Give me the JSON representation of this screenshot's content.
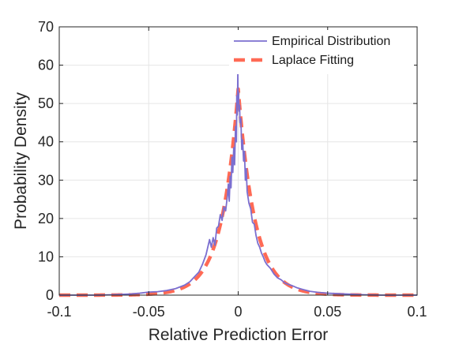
{
  "chart_data": {
    "type": "line",
    "title": "",
    "xlabel": "Relative Prediction Error",
    "ylabel": "Probability Density",
    "xlim": [
      -0.1,
      0.1
    ],
    "ylim": [
      0,
      70
    ],
    "x_ticks": [
      -0.1,
      -0.05,
      0,
      0.05,
      0.1
    ],
    "x_tick_labels": [
      "-0.1",
      "-0.05",
      "0",
      "0.05",
      "0.1"
    ],
    "y_ticks": [
      0,
      10,
      20,
      30,
      40,
      50,
      60,
      70
    ],
    "y_tick_labels": [
      "0",
      "10",
      "20",
      "30",
      "40",
      "50",
      "60",
      "70"
    ],
    "grid": true,
    "legend_position": "top-right",
    "series": [
      {
        "name": "Empirical Distribution",
        "color": "#7b6fd0",
        "style": "solid",
        "x": [
          -0.1,
          -0.09,
          -0.08,
          -0.07,
          -0.06,
          -0.055,
          -0.05,
          -0.045,
          -0.04,
          -0.035,
          -0.03,
          -0.027,
          -0.025,
          -0.022,
          -0.02,
          -0.018,
          -0.016,
          -0.015,
          -0.014,
          -0.013,
          -0.012,
          -0.011,
          -0.01,
          -0.009,
          -0.008,
          -0.007,
          -0.006,
          -0.0055,
          -0.005,
          -0.0045,
          -0.004,
          -0.0035,
          -0.003,
          -0.0025,
          -0.002,
          -0.0015,
          -0.001,
          -0.0008,
          -0.0005,
          -0.0002,
          0,
          0.0002,
          0.0005,
          0.0008,
          0.001,
          0.0015,
          0.002,
          0.0025,
          0.003,
          0.0035,
          0.004,
          0.0045,
          0.005,
          0.006,
          0.007,
          0.008,
          0.009,
          0.01,
          0.011,
          0.012,
          0.013,
          0.014,
          0.015,
          0.016,
          0.018,
          0.02,
          0.022,
          0.024,
          0.026,
          0.028,
          0.03,
          0.033,
          0.036,
          0.04,
          0.045,
          0.05,
          0.06,
          0.07,
          0.08,
          0.09,
          0.1
        ],
        "y": [
          0,
          0,
          0,
          0.1,
          0.3,
          0.5,
          0.8,
          0.9,
          1.2,
          1.7,
          2.6,
          3.5,
          4.5,
          6.0,
          8.0,
          10.5,
          14.5,
          12.5,
          15.0,
          13.0,
          17.5,
          18.0,
          21.0,
          19.5,
          23.0,
          22.0,
          26.0,
          29.0,
          24.5,
          31.0,
          28.0,
          36.0,
          32.0,
          38.5,
          34.0,
          44.0,
          40.0,
          52.0,
          47.0,
          58.0,
          50.0,
          53.0,
          48.0,
          49.5,
          45.0,
          46.0,
          38.0,
          40.5,
          35.0,
          37.5,
          30.0,
          33.0,
          27.0,
          24.0,
          22.5,
          19.0,
          18.5,
          15.5,
          13.5,
          12.5,
          11.0,
          10.0,
          8.8,
          8.0,
          7.0,
          5.5,
          4.5,
          4.0,
          3.2,
          2.8,
          2.5,
          1.9,
          1.5,
          1.0,
          0.7,
          0.5,
          0.3,
          0.1,
          0,
          0,
          0
        ]
      },
      {
        "name": "Laplace Fitting",
        "color": "#ff6a55",
        "style": "dashed",
        "function": "laplace",
        "mu": 0,
        "b": 0.0093
      }
    ]
  }
}
